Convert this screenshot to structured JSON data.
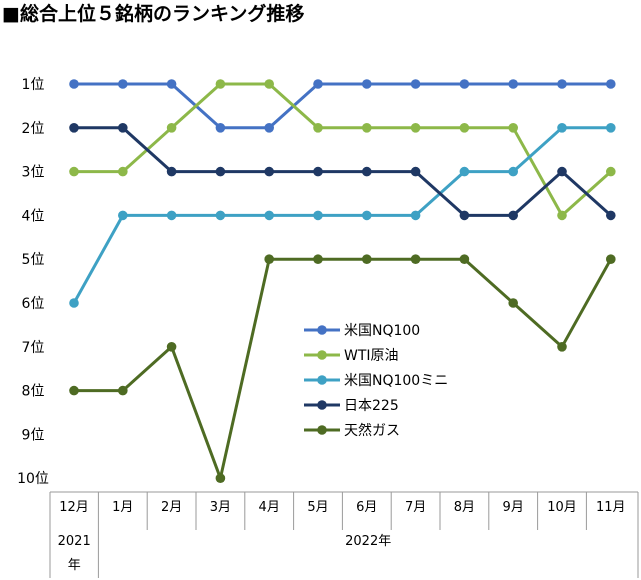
{
  "chart_data": {
    "type": "line",
    "title": "■総合上位５銘柄のランキング推移",
    "categories": [
      "12月",
      "1月",
      "2月",
      "3月",
      "4月",
      "5月",
      "6月",
      "7月",
      "8月",
      "9月",
      "10月",
      "11月"
    ],
    "year_groups": [
      {
        "label": "2021年",
        "count": 1
      },
      {
        "label": "2022年",
        "count": 11
      }
    ],
    "y_ticks": [
      "1位",
      "2位",
      "3位",
      "4位",
      "5位",
      "6位",
      "7位",
      "8位",
      "9位",
      "10位"
    ],
    "ylim": [
      1,
      10
    ],
    "y_inverted": true,
    "legend_position": "center-right",
    "series": [
      {
        "name": "米国NQ100",
        "color": "#4472C4",
        "values": [
          1,
          1,
          1,
          2,
          2,
          1,
          1,
          1,
          1,
          1,
          1,
          1
        ]
      },
      {
        "name": "WTI原油",
        "color": "#8DB849",
        "values": [
          3,
          3,
          2,
          1,
          1,
          2,
          2,
          2,
          2,
          2,
          4,
          3
        ]
      },
      {
        "name": "米国NQ100ミニ",
        "color": "#3EA1C4",
        "values": [
          6,
          4,
          4,
          4,
          4,
          4,
          4,
          4,
          3,
          3,
          2,
          2
        ]
      },
      {
        "name": "日本225",
        "color": "#1F3864",
        "values": [
          2,
          2,
          3,
          3,
          3,
          3,
          3,
          3,
          4,
          4,
          3,
          4
        ]
      },
      {
        "name": "天然ガス",
        "color": "#4E6B23",
        "values": [
          8,
          8,
          7,
          10,
          5,
          5,
          5,
          5,
          5,
          6,
          7,
          5
        ]
      }
    ]
  }
}
